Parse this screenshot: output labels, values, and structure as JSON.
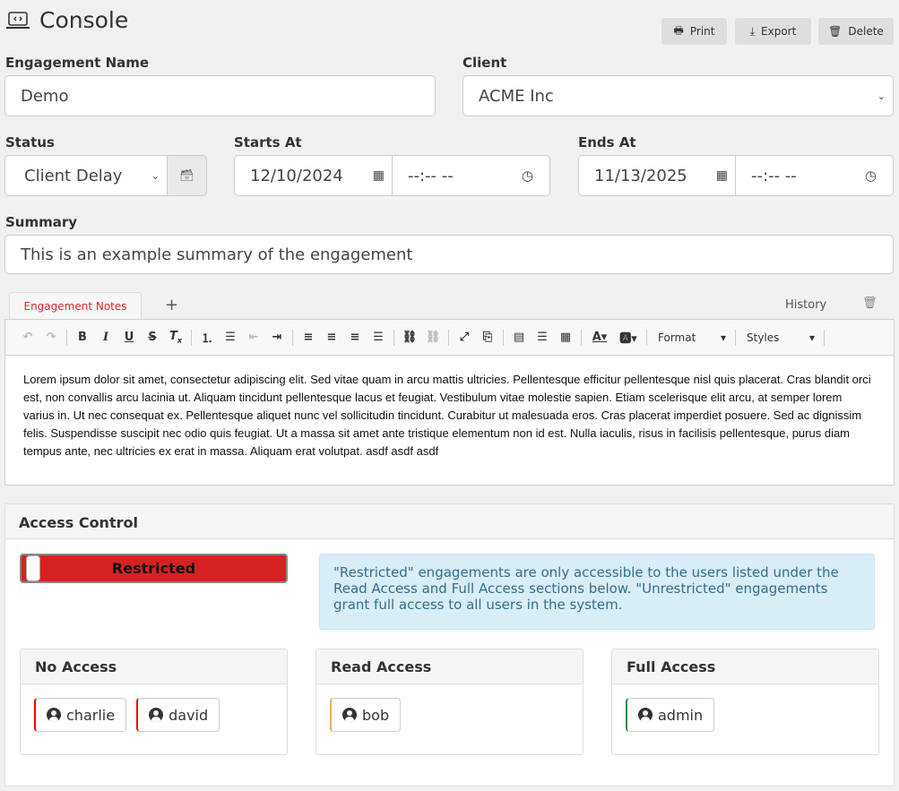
{
  "header": {
    "title": "Console",
    "buttons": [
      {
        "label": "Print",
        "icon": "printer-icon"
      },
      {
        "label": "Export",
        "icon": "download-icon"
      },
      {
        "label": "Delete",
        "icon": "trash-icon"
      }
    ]
  },
  "form": {
    "engagement_name": {
      "label": "Engagement Name",
      "value": "Demo"
    },
    "client": {
      "label": "Client",
      "value": "ACME Inc"
    },
    "status": {
      "label": "Status",
      "value": "Client Delay"
    },
    "starts_at": {
      "label": "Starts At",
      "date": "12/10/2024",
      "time": "--:-- --"
    },
    "ends_at": {
      "label": "Ends At",
      "date": "11/13/2025",
      "time": "--:-- --"
    },
    "summary": {
      "label": "Summary",
      "value": "This is an example summary of the engagement"
    }
  },
  "notes": {
    "tabs": [
      {
        "label": "Engagement Notes",
        "active": true
      }
    ],
    "add_tab": "+",
    "history": "History",
    "toolbar": {
      "format": "Format",
      "styles": "Styles"
    },
    "content": "Lorem ipsum dolor sit amet, consectetur adipiscing elit. Sed vitae quam in arcu mattis ultricies. Pellentesque efficitur pellentesque nisl quis placerat. Cras blandit orci est, non convallis arcu lacinia ut. Aliquam tincidunt pellentesque lacus et feugiat. Vestibulum vitae molestie sapien. Etiam scelerisque elit arcu, at semper lorem varius in. Ut nec consequat ex. Pellentesque aliquet nunc vel sollicitudin tincidunt. Curabitur ut malesuada eros. Cras placerat imperdiet posuere. Sed ac dignissim felis. Suspendisse suscipit nec odio quis feugiat. Ut a massa sit amet ante tristique elementum non id est. Nulla iaculis, risus in facilisis pellentesque, purus diam tempus ante, nec ultricies ex erat in massa. Aliquam erat volutpat. asdf asdf asdf"
  },
  "access": {
    "title": "Access Control",
    "toggle_label": "Restricted",
    "toggle_color": "#d62222",
    "info": "\"Restricted\" engagements are only accessible to the users listed under the Read Access and Full Access sections below. \"Unrestricted\" engagements grant full access to all users in the system.",
    "groups": [
      {
        "title": "No Access",
        "color": "#ff0000",
        "users": [
          "charlie",
          "david"
        ]
      },
      {
        "title": "Read Access",
        "color": "#f0ad4e",
        "users": [
          "bob"
        ]
      },
      {
        "title": "Full Access",
        "color": "#2e8b3e",
        "users": [
          "admin"
        ]
      }
    ]
  }
}
